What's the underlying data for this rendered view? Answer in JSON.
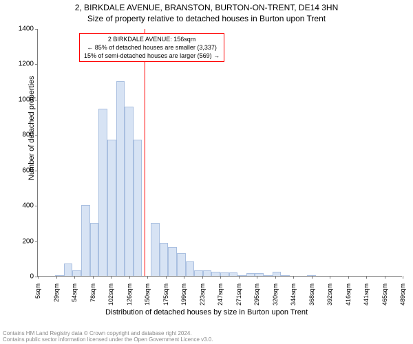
{
  "titles": {
    "line1": "2, BIRKDALE AVENUE, BRANSTON, BURTON-ON-TRENT, DE14 3HN",
    "line2": "Size of property relative to detached houses in Burton upon Trent"
  },
  "axes": {
    "ylabel": "Number of detached properties",
    "xlabel": "Distribution of detached houses by size in Burton upon Trent",
    "ylim": [
      0,
      1400
    ],
    "ytick_step": 200,
    "yticks": [
      0,
      200,
      400,
      600,
      800,
      1000,
      1200,
      1400
    ],
    "xticks": [
      "5sqm",
      "29sqm",
      "54sqm",
      "78sqm",
      "102sqm",
      "126sqm",
      "150sqm",
      "175sqm",
      "199sqm",
      "223sqm",
      "247sqm",
      "271sqm",
      "295sqm",
      "320sqm",
      "344sqm",
      "368sqm",
      "392sqm",
      "416sqm",
      "441sqm",
      "465sqm",
      "489sqm"
    ]
  },
  "chart": {
    "type": "histogram",
    "num_bins": 42,
    "values": [
      0,
      0,
      5,
      70,
      30,
      400,
      300,
      945,
      770,
      1100,
      955,
      770,
      0,
      300,
      185,
      165,
      130,
      80,
      30,
      30,
      25,
      20,
      20,
      5,
      15,
      15,
      5,
      25,
      5,
      0,
      0,
      5,
      0,
      0,
      0,
      0,
      0,
      0,
      0,
      0,
      0,
      0
    ],
    "bar_fill": "#d7e3f4",
    "bar_stroke": "#a9bfe0",
    "marker_position": 0.293,
    "marker_color": "#ff0000",
    "background_color": "#ffffff",
    "axis_color": "#7a7a7a"
  },
  "annotation": {
    "border_color": "#ff0000",
    "lines": {
      "l1": "2 BIRKDALE AVENUE: 156sqm",
      "l2": "← 85% of detached houses are smaller (3,337)",
      "l3": "15% of semi-detached houses are larger (569) →"
    }
  },
  "footer": {
    "l1": "Contains HM Land Registry data © Crown copyright and database right 2024.",
    "l2": "Contains public sector information licensed under the Open Government Licence v3.0."
  }
}
